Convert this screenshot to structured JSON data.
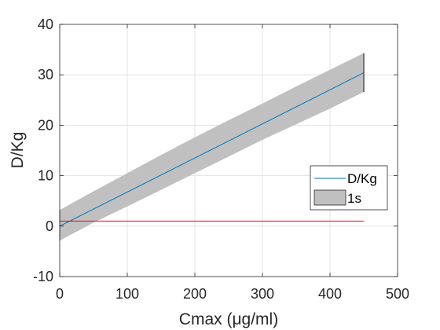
{
  "chart_data": {
    "type": "line",
    "xlabel": "Cmax (μg/ml)",
    "ylabel": "D/Kg",
    "xlim": [
      0,
      500
    ],
    "ylim": [
      -10,
      40
    ],
    "xticks": [
      0,
      100,
      200,
      300,
      400,
      500
    ],
    "yticks": [
      -10,
      0,
      10,
      20,
      30,
      40
    ],
    "xtick_labels": [
      "0",
      "100",
      "200",
      "300",
      "400",
      "500"
    ],
    "ytick_labels": [
      "-10",
      "0",
      "10",
      "20",
      "30",
      "40"
    ],
    "grid": true,
    "legend_position": "right",
    "series": [
      {
        "name": "D/Kg",
        "kind": "line",
        "color": "#0072BD",
        "x": [
          0,
          450
        ],
        "y": [
          0.0,
          30.4
        ]
      },
      {
        "name": "1s",
        "kind": "band",
        "color": "#c0c0c0",
        "x": [
          0,
          50,
          100,
          150,
          200,
          250,
          300,
          350,
          400,
          450
        ],
        "upper": [
          3.2,
          6.9,
          10.5,
          14.1,
          17.6,
          21.0,
          24.3,
          27.7,
          31.0,
          34.3
        ],
        "lower": [
          -2.9,
          0.7,
          3.9,
          7.2,
          10.5,
          13.8,
          17.1,
          20.2,
          23.3,
          26.6
        ]
      },
      {
        "kind": "line",
        "color": "#ff0000",
        "x": [
          0,
          450
        ],
        "y": [
          1,
          1
        ]
      }
    ]
  }
}
